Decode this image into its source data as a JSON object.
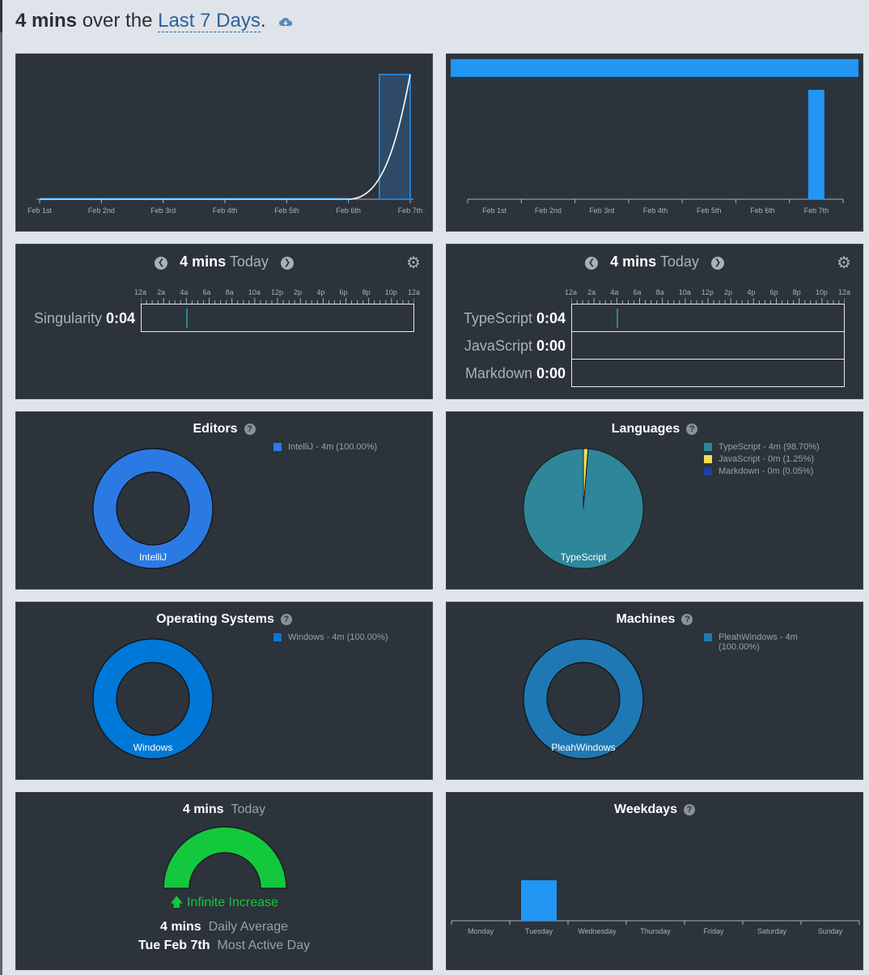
{
  "header": {
    "total": "4 mins",
    "over_the": "over the",
    "range": "Last 7 Days",
    "period": ".",
    "download_icon": "cloud-download-icon"
  },
  "activity_chart": {
    "chart_data": {
      "type": "area",
      "categories": [
        "Feb 1st",
        "Feb 2nd",
        "Feb 3rd",
        "Feb 4th",
        "Feb 5th",
        "Feb 6th",
        "Feb 7th"
      ],
      "values": [
        0,
        0,
        0,
        0,
        0,
        0,
        4
      ],
      "unit": "mins",
      "tick_labels": [
        "Feb 1st",
        "Feb 2nd",
        "Feb 3rd",
        "Feb 4th",
        "Feb 5th",
        "Feb 6th",
        "Feb 7th"
      ]
    }
  },
  "projects_bar_chart": {
    "chart_data": {
      "type": "bar",
      "categories": [
        "Feb 1st",
        "Feb 2nd",
        "Feb 3rd",
        "Feb 4th",
        "Feb 5th",
        "Feb 6th",
        "Feb 7th"
      ],
      "series": [
        {
          "values": [
            0,
            0,
            0,
            0,
            0,
            0,
            4
          ]
        }
      ],
      "legend_color": "#2196f3"
    }
  },
  "project_timeline": {
    "total": "4 mins",
    "day": "Today",
    "hours": [
      "12a",
      "2a",
      "4a",
      "6a",
      "8a",
      "10a",
      "12p",
      "2p",
      "4p",
      "6p",
      "8p",
      "10p",
      "12a"
    ],
    "rows": [
      {
        "name": "Singularity",
        "time": "0:04",
        "activity_hour": 3.9
      }
    ]
  },
  "language_timeline": {
    "total": "4 mins",
    "day": "Today",
    "hours": [
      "12a",
      "2a",
      "4a",
      "6a",
      "8a",
      "10a",
      "12p",
      "2p",
      "4p",
      "6p",
      "8p",
      "10p",
      "12a"
    ],
    "rows": [
      {
        "name": "TypeScript",
        "time": "0:04",
        "activity_hour": 3.9
      },
      {
        "name": "JavaScript",
        "time": "0:00"
      },
      {
        "name": "Markdown",
        "time": "0:00"
      }
    ]
  },
  "editors": {
    "title": "Editors",
    "chart_data": {
      "type": "pie",
      "labels": [
        "IntelliJ"
      ],
      "values": [
        100.0
      ],
      "legend": [
        "IntelliJ - 4m (100.00%)"
      ],
      "colors": [
        "#2b7ae4"
      ],
      "center_label": "IntelliJ",
      "donut": true
    }
  },
  "languages": {
    "title": "Languages",
    "chart_data": {
      "type": "pie",
      "labels": [
        "TypeScript",
        "JavaScript",
        "Markdown"
      ],
      "values": [
        98.7,
        1.25,
        0.05
      ],
      "legend": [
        "TypeScript - 4m (98.70%)",
        "JavaScript - 0m (1.25%)",
        "Markdown - 0m (0.05%)"
      ],
      "colors": [
        "#2e869a",
        "#f0dd4f",
        "#1d3fa6"
      ],
      "center_label": "TypeScript",
      "donut": false
    }
  },
  "operating_systems": {
    "title": "Operating Systems",
    "chart_data": {
      "type": "pie",
      "labels": [
        "Windows"
      ],
      "values": [
        100.0
      ],
      "legend": [
        "Windows - 4m (100.00%)"
      ],
      "colors": [
        "#0078d7"
      ],
      "center_label": "Windows",
      "donut": true
    }
  },
  "machines": {
    "title": "Machines",
    "chart_data": {
      "type": "pie",
      "labels": [
        "PleahWindows"
      ],
      "values": [
        100.0
      ],
      "legend_lines": [
        "PleahWindows - 4m",
        "(100.00%)"
      ],
      "colors": [
        "#1f78b4"
      ],
      "center_label": "PleahWindows",
      "donut": true
    }
  },
  "today_summary": {
    "total": "4 mins",
    "day": "Today",
    "gauge_fraction": 1.0,
    "gauge_color": "#13c83d",
    "change_text": "Infinite Increase",
    "daily_average": "4 mins",
    "daily_average_label": "Daily Average",
    "most_active_day": "Tue Feb 7th",
    "most_active_day_label": "Most Active Day"
  },
  "weekdays": {
    "title": "Weekdays",
    "chart_data": {
      "type": "bar",
      "categories": [
        "Monday",
        "Tuesday",
        "Wednesday",
        "Thursday",
        "Friday",
        "Saturday",
        "Sunday"
      ],
      "values": [
        0,
        4,
        0,
        0,
        0,
        0,
        0
      ],
      "color": "#2196f3"
    }
  }
}
